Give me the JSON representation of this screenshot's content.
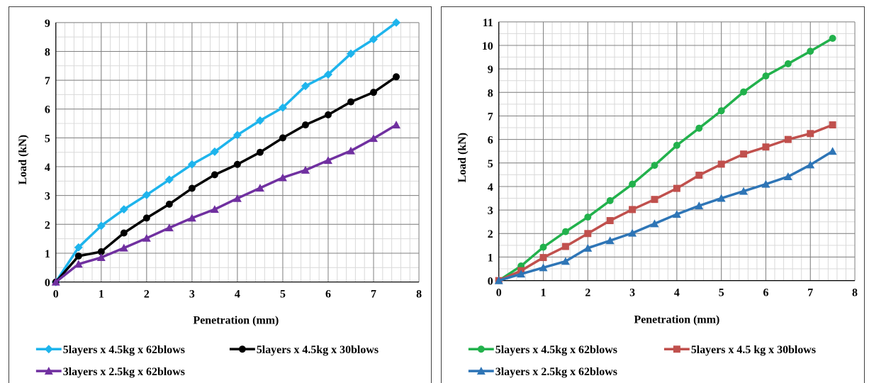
{
  "chart_data": [
    {
      "type": "line",
      "xlabel": "Penetration (mm)",
      "ylabel": "Load (kN)",
      "xlim": [
        0,
        8
      ],
      "ylim": [
        0,
        9
      ],
      "xticks": [
        "0",
        "1",
        "2",
        "3",
        "4",
        "5",
        "6",
        "7",
        "8"
      ],
      "yticks": [
        "0",
        "1",
        "2",
        "3",
        "4",
        "5",
        "6",
        "7",
        "8",
        "9"
      ],
      "grid": true,
      "minor_grid": true,
      "legend_position": "bottom",
      "series": [
        {
          "name": "5layers x 4.5kg x 62blows",
          "color": "#1eb4ec",
          "marker": "diamond",
          "x": [
            0,
            0.5,
            1,
            1.5,
            2,
            2.5,
            3,
            3.5,
            4,
            4.5,
            5,
            5.5,
            6,
            6.5,
            7,
            7.5
          ],
          "y": [
            0,
            1.2,
            1.95,
            2.52,
            3.02,
            3.55,
            4.08,
            4.52,
            5.1,
            5.6,
            6.05,
            6.8,
            7.2,
            7.92,
            8.42,
            9.0
          ]
        },
        {
          "name": "5layers x 4.5kg x 30blows",
          "color": "#000000",
          "marker": "circle",
          "x": [
            0,
            0.5,
            1,
            1.5,
            2,
            2.5,
            3,
            3.5,
            4,
            4.5,
            5,
            5.5,
            6,
            6.5,
            7,
            7.5
          ],
          "y": [
            0,
            0.9,
            1.05,
            1.7,
            2.22,
            2.7,
            3.25,
            3.72,
            4.08,
            4.5,
            5.0,
            5.45,
            5.8,
            6.25,
            6.58,
            7.12
          ]
        },
        {
          "name": "3layers x 2.5kg x 62blows",
          "color": "#7030a0",
          "marker": "triangle",
          "x": [
            0,
            0.5,
            1,
            1.5,
            2,
            2.5,
            3,
            3.5,
            4,
            4.5,
            5,
            5.5,
            6,
            6.5,
            7,
            7.5
          ],
          "y": [
            0,
            0.62,
            0.85,
            1.18,
            1.52,
            1.88,
            2.22,
            2.52,
            2.9,
            3.26,
            3.62,
            3.88,
            4.22,
            4.55,
            4.98,
            5.45
          ]
        }
      ]
    },
    {
      "type": "line",
      "xlabel": "Penetration (mm)",
      "ylabel": "Load (kN)",
      "xlim": [
        0,
        8
      ],
      "ylim": [
        0,
        11
      ],
      "xticks": [
        "0",
        "1",
        "2",
        "3",
        "4",
        "5",
        "6",
        "7",
        "8"
      ],
      "yticks": [
        "0",
        "1",
        "2",
        "3",
        "4",
        "5",
        "6",
        "7",
        "8",
        "9",
        "10",
        "11"
      ],
      "grid": true,
      "minor_grid": true,
      "legend_position": "bottom",
      "series": [
        {
          "name": "5layers x 4.5kg x 62blows",
          "color": "#22b14c",
          "marker": "circle",
          "x": [
            0,
            0.5,
            1,
            1.5,
            2,
            2.5,
            3,
            3.5,
            4,
            4.5,
            5,
            5.5,
            6,
            6.5,
            7,
            7.5
          ],
          "y": [
            0,
            0.62,
            1.42,
            2.08,
            2.7,
            3.4,
            4.1,
            4.9,
            5.75,
            6.48,
            7.22,
            8.02,
            8.7,
            9.22,
            9.75,
            10.3
          ]
        },
        {
          "name": "5layers x 4.5 kg x 30blows",
          "color": "#c0504d",
          "marker": "square",
          "x": [
            0,
            0.5,
            1,
            1.5,
            2,
            2.5,
            3,
            3.5,
            4,
            4.5,
            5,
            5.5,
            6,
            6.5,
            7,
            7.5
          ],
          "y": [
            0,
            0.42,
            0.98,
            1.45,
            2.0,
            2.55,
            3.02,
            3.45,
            3.92,
            4.48,
            4.95,
            5.38,
            5.68,
            6.0,
            6.25,
            6.62
          ]
        },
        {
          "name": "3layers x 2.5kg x 62blows",
          "color": "#2e75b6",
          "marker": "triangle",
          "x": [
            0,
            0.5,
            1,
            1.5,
            2,
            2.5,
            3,
            3.5,
            4,
            4.5,
            5,
            5.5,
            6,
            6.5,
            7,
            7.5
          ],
          "y": [
            0,
            0.28,
            0.55,
            0.82,
            1.38,
            1.7,
            2.02,
            2.42,
            2.82,
            3.18,
            3.5,
            3.8,
            4.1,
            4.42,
            4.92,
            5.5
          ]
        }
      ]
    }
  ]
}
